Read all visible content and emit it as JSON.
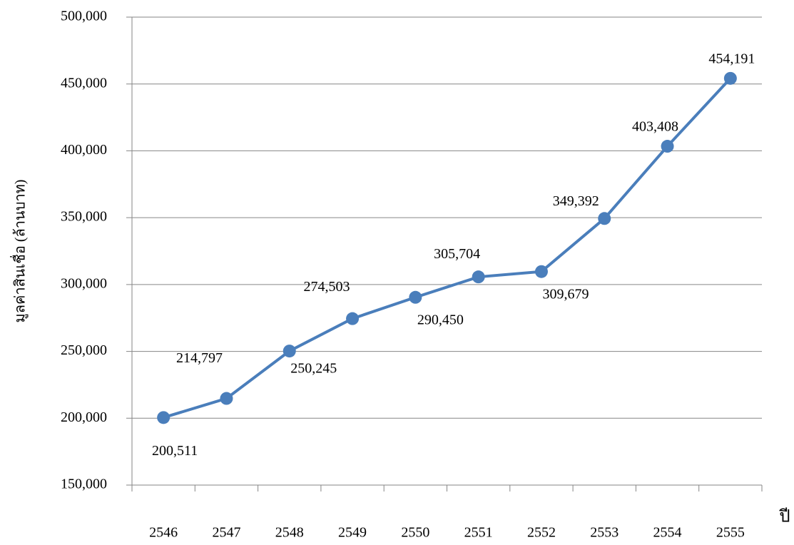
{
  "chart_data": {
    "type": "line",
    "y_label": "มูลค่าสินเชื่อ (ล้านบาท)",
    "x_label": "ปี",
    "categories": [
      "2546",
      "2547",
      "2548",
      "2549",
      "2550",
      "2551",
      "2552",
      "2553",
      "2554",
      "2555"
    ],
    "series": [
      {
        "color": "#4a7ebb",
        "values": [
          200511,
          214797,
          250245,
          274503,
          290450,
          305704,
          309679,
          349392,
          403408,
          454191
        ],
        "value_labels": [
          "200,511",
          "214,797",
          "250,245",
          "274,503",
          "290,450",
          "305,704",
          "309,679",
          "349,392",
          "403,408",
          "454,191"
        ]
      }
    ],
    "ylim": [
      150000,
      500000
    ],
    "yticks": [
      {
        "value": 150000,
        "label": "150,000"
      },
      {
        "value": 200000,
        "label": "200,000"
      },
      {
        "value": 250000,
        "label": "250,000"
      },
      {
        "value": 300000,
        "label": "300,000"
      },
      {
        "value": 350000,
        "label": "350,000"
      },
      {
        "value": 400000,
        "label": "400,000"
      },
      {
        "value": 450000,
        "label": "450,000"
      },
      {
        "value": 500000,
        "label": "500,000"
      }
    ],
    "grid": true
  }
}
